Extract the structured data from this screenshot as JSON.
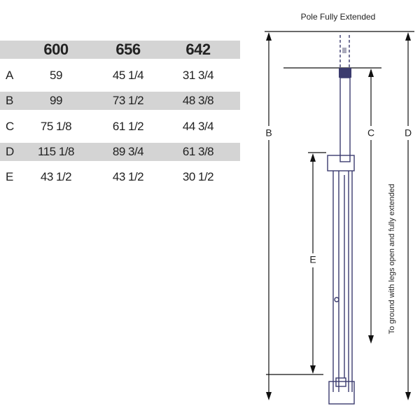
{
  "table": {
    "header": [
      "600",
      "656",
      "642"
    ],
    "rows": [
      {
        "label": "A",
        "cells": [
          "59",
          "45 1/4",
          "31 3/4"
        ]
      },
      {
        "label": "B",
        "cells": [
          "99",
          "73 1/2",
          "48 3/8"
        ]
      },
      {
        "label": "C",
        "cells": [
          "75 1/8",
          "61 1/2",
          "44 3/4"
        ]
      },
      {
        "label": "D",
        "cells": [
          "115 1/8",
          "89 3/4",
          "61 3/8"
        ]
      },
      {
        "label": "E",
        "cells": [
          "43 1/2",
          "43 1/2",
          "30 1/2"
        ]
      }
    ]
  },
  "diagram": {
    "title": "Pole Fully Extended",
    "label_b": "B",
    "label_c": "C",
    "label_d": "D",
    "label_e": "E",
    "note": "To ground with legs open and fully extended"
  }
}
